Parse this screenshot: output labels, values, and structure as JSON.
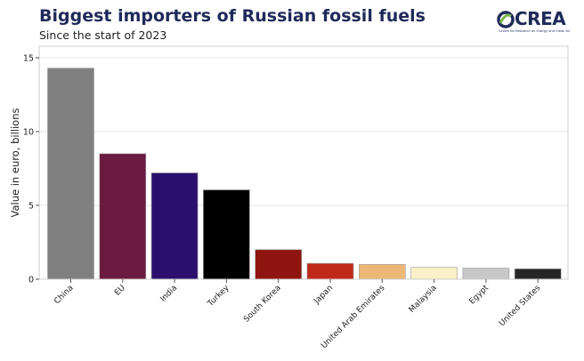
{
  "header": {
    "title": "Biggest importers of Russian fossil fuels",
    "subtitle": "Since the start of 2023"
  },
  "logo": {
    "text": "CREA",
    "subtext": "Centre for Research on Energy and Clean Air",
    "colors": {
      "green": "#7ab648",
      "navy": "#1f2a5a"
    }
  },
  "chart_data": {
    "type": "bar",
    "title": "Biggest importers of Russian fossil fuels",
    "subtitle": "Since the start of 2023",
    "xlabel": "",
    "ylabel": "Value in euro, billions",
    "ylim": [
      0,
      15
    ],
    "yticks": [
      0,
      5,
      10,
      15
    ],
    "grid": true,
    "categories": [
      "China",
      "EU",
      "India",
      "Turkey",
      "South Korea",
      "Japan",
      "United Arab Emirates",
      "Malaysia",
      "Egypt",
      "United States"
    ],
    "values": [
      14.3,
      8.5,
      7.2,
      6.05,
      2.0,
      1.07,
      1.0,
      0.8,
      0.75,
      0.7
    ],
    "colors": [
      "#808080",
      "#6b1a40",
      "#2b0f6e",
      "#000000",
      "#8e1510",
      "#c0281a",
      "#edb877",
      "#fbf0c8",
      "#c8c8c8",
      "#262626"
    ]
  }
}
